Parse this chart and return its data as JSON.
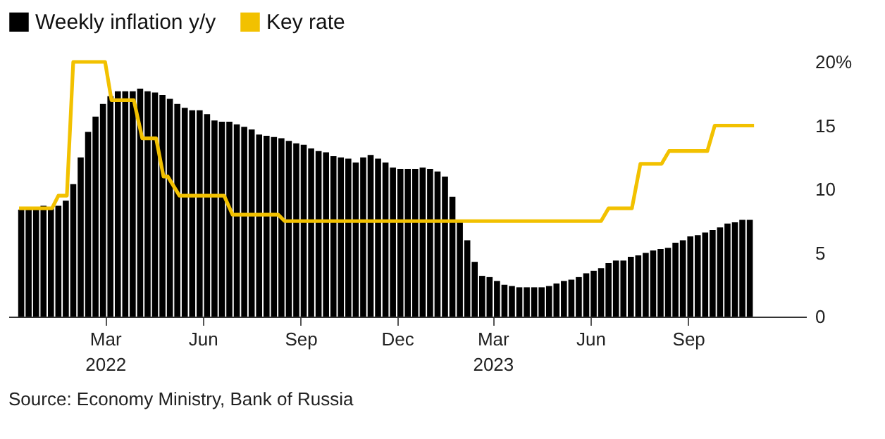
{
  "chart_data": {
    "type": "bar",
    "x": [
      "2021-12-12",
      "2021-12-19",
      "2021-12-26",
      "2022-01-02",
      "2022-01-09",
      "2022-01-16",
      "2022-01-23",
      "2022-01-30",
      "2022-02-06",
      "2022-02-13",
      "2022-02-20",
      "2022-02-27",
      "2022-03-06",
      "2022-03-13",
      "2022-03-20",
      "2022-03-27",
      "2022-04-03",
      "2022-04-10",
      "2022-04-17",
      "2022-04-24",
      "2022-05-01",
      "2022-05-08",
      "2022-05-15",
      "2022-05-22",
      "2022-05-29",
      "2022-06-05",
      "2022-06-12",
      "2022-06-19",
      "2022-06-26",
      "2022-07-03",
      "2022-07-10",
      "2022-07-17",
      "2022-07-24",
      "2022-07-31",
      "2022-08-07",
      "2022-08-14",
      "2022-08-21",
      "2022-08-28",
      "2022-09-04",
      "2022-09-11",
      "2022-09-18",
      "2022-09-25",
      "2022-10-02",
      "2022-10-09",
      "2022-10-16",
      "2022-10-23",
      "2022-10-30",
      "2022-11-06",
      "2022-11-13",
      "2022-11-20",
      "2022-11-27",
      "2022-12-04",
      "2022-12-11",
      "2022-12-18",
      "2022-12-25",
      "2023-01-01",
      "2023-01-08",
      "2023-01-15",
      "2023-01-22",
      "2023-01-29",
      "2023-02-05",
      "2023-02-12",
      "2023-02-19",
      "2023-02-26",
      "2023-03-05",
      "2023-03-12",
      "2023-03-19",
      "2023-03-26",
      "2023-04-02",
      "2023-04-09",
      "2023-04-16",
      "2023-04-23",
      "2023-04-30",
      "2023-05-07",
      "2023-05-14",
      "2023-05-21",
      "2023-05-28",
      "2023-06-04",
      "2023-06-11",
      "2023-06-18",
      "2023-06-25",
      "2023-07-02",
      "2023-07-09",
      "2023-07-16",
      "2023-07-23",
      "2023-07-30",
      "2023-08-06",
      "2023-08-13",
      "2023-08-20",
      "2023-08-27",
      "2023-09-03",
      "2023-09-10",
      "2023-09-17",
      "2023-09-24",
      "2023-10-01",
      "2023-10-08",
      "2023-10-15",
      "2023-10-22",
      "2023-10-29"
    ],
    "series": [
      {
        "name": "Weekly inflation y/y",
        "type": "bar",
        "color": "#000000",
        "values": [
          8.4,
          8.4,
          8.4,
          8.7,
          8.5,
          8.7,
          9.1,
          10.4,
          12.5,
          14.5,
          15.7,
          16.7,
          17.3,
          17.7,
          17.7,
          17.7,
          17.9,
          17.7,
          17.6,
          17.4,
          17.1,
          16.7,
          16.4,
          16.2,
          16.2,
          15.9,
          15.4,
          15.3,
          15.3,
          15.1,
          14.9,
          14.7,
          14.3,
          14.2,
          14.1,
          14.0,
          13.8,
          13.6,
          13.5,
          13.2,
          13.0,
          12.9,
          12.6,
          12.5,
          12.4,
          12.1,
          12.5,
          12.7,
          12.4,
          12.1,
          11.7,
          11.6,
          11.6,
          11.6,
          11.7,
          11.6,
          11.4,
          11.0,
          9.4,
          7.6,
          6.0,
          4.3,
          3.2,
          3.1,
          2.8,
          2.5,
          2.4,
          2.3,
          2.3,
          2.3,
          2.3,
          2.4,
          2.6,
          2.8,
          2.9,
          3.1,
          3.4,
          3.6,
          3.8,
          4.2,
          4.4,
          4.4,
          4.7,
          4.8,
          5.0,
          5.2,
          5.3,
          5.4,
          5.8,
          6.0,
          6.3,
          6.4,
          6.6,
          6.8,
          7.0,
          7.3,
          7.4,
          7.6,
          7.6
        ]
      },
      {
        "name": "Key rate",
        "type": "line",
        "color": "#f2c100",
        "x": [
          "2021-12-10",
          "2022-01-10",
          "2022-01-16",
          "2022-01-24",
          "2022-01-30",
          "2022-03-01",
          "2022-03-07",
          "2022-03-28",
          "2022-04-05",
          "2022-04-18",
          "2022-04-25",
          "2022-04-29",
          "2022-05-10",
          "2022-06-21",
          "2022-06-29",
          "2022-08-11",
          "2022-08-17",
          "2023-06-11",
          "2023-06-18",
          "2023-07-10",
          "2023-07-18",
          "2023-08-07",
          "2023-08-14",
          "2023-09-19",
          "2023-09-26",
          "2023-11-02"
        ],
        "values": [
          8.5,
          8.5,
          9.5,
          9.5,
          20,
          20,
          17,
          17,
          14,
          14,
          11,
          11,
          9.5,
          9.5,
          8,
          8,
          7.5,
          7.5,
          8.5,
          8.5,
          12,
          12,
          13,
          13,
          15,
          15
        ]
      }
    ],
    "xlim": [
      "2021-11-30",
      "2023-12-21"
    ],
    "xticks": [
      {
        "value": "2022-03-01",
        "label": "Mar\n2022"
      },
      {
        "value": "2022-06-01",
        "label": "Jun"
      },
      {
        "value": "2022-09-01",
        "label": "Sep"
      },
      {
        "value": "2022-12-01",
        "label": "Dec"
      },
      {
        "value": "2023-03-01",
        "label": "Mar\n2023"
      },
      {
        "value": "2023-06-01",
        "label": "Jun"
      },
      {
        "value": "2023-09-01",
        "label": "Sep"
      }
    ],
    "ylim": [
      0,
      20
    ],
    "yticks": [
      0,
      5,
      10,
      15,
      {
        "value": 20,
        "label": "20%"
      }
    ],
    "grid": false,
    "legend": "top left",
    "annotations": [
      "Source: Economy Ministry, Bank of Russia"
    ]
  }
}
